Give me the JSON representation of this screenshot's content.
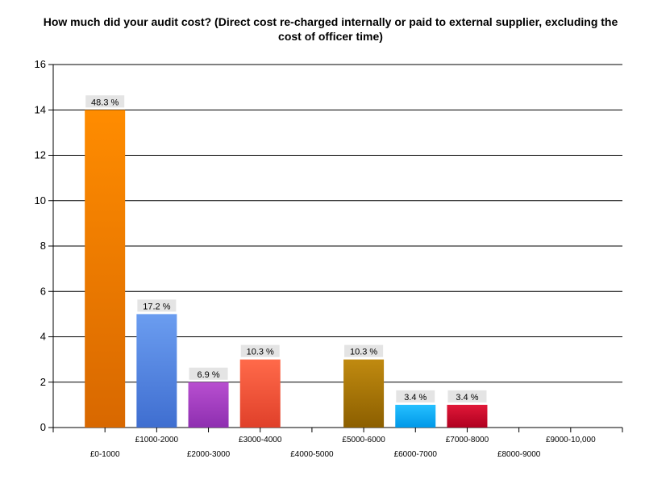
{
  "chart_data": {
    "type": "bar",
    "title": "How much did your audit cost? (Direct cost re-charged internally or paid to external supplier, excluding the cost of officer time)",
    "xlabel": "",
    "ylabel": "",
    "ylim": [
      0,
      16
    ],
    "yticks": [
      0,
      2,
      4,
      6,
      8,
      10,
      12,
      14,
      16
    ],
    "grid": true,
    "categories": [
      "£0-1000",
      "£1000-2000",
      "£2000-3000",
      "£3000-4000",
      "£4000-5000",
      "£5000-6000",
      "£6000-7000",
      "£7000-8000",
      "£8000-9000",
      "£9000-10,000"
    ],
    "values": [
      14,
      5,
      2,
      3,
      0,
      3,
      1,
      1,
      0,
      0
    ],
    "data_labels": [
      "48.3 %",
      "17.2 %",
      "6.9 %",
      "10.3 %",
      "",
      "10.3 %",
      "3.4 %",
      "3.4 %",
      "",
      ""
    ],
    "colors": [
      [
        "#ff8c00",
        "#d86800"
      ],
      [
        "#6b9df0",
        "#3f6ed0"
      ],
      [
        "#b84fd0",
        "#8e2fb0"
      ],
      [
        "#ff6a4a",
        "#e0402a"
      ],
      [
        "#999999",
        "#777777"
      ],
      [
        "#c08a10",
        "#8c5f00"
      ],
      [
        "#25c0ff",
        "#0098e8"
      ],
      [
        "#e01838",
        "#b00020"
      ],
      [
        "#999999",
        "#777777"
      ],
      [
        "#999999",
        "#777777"
      ]
    ]
  }
}
